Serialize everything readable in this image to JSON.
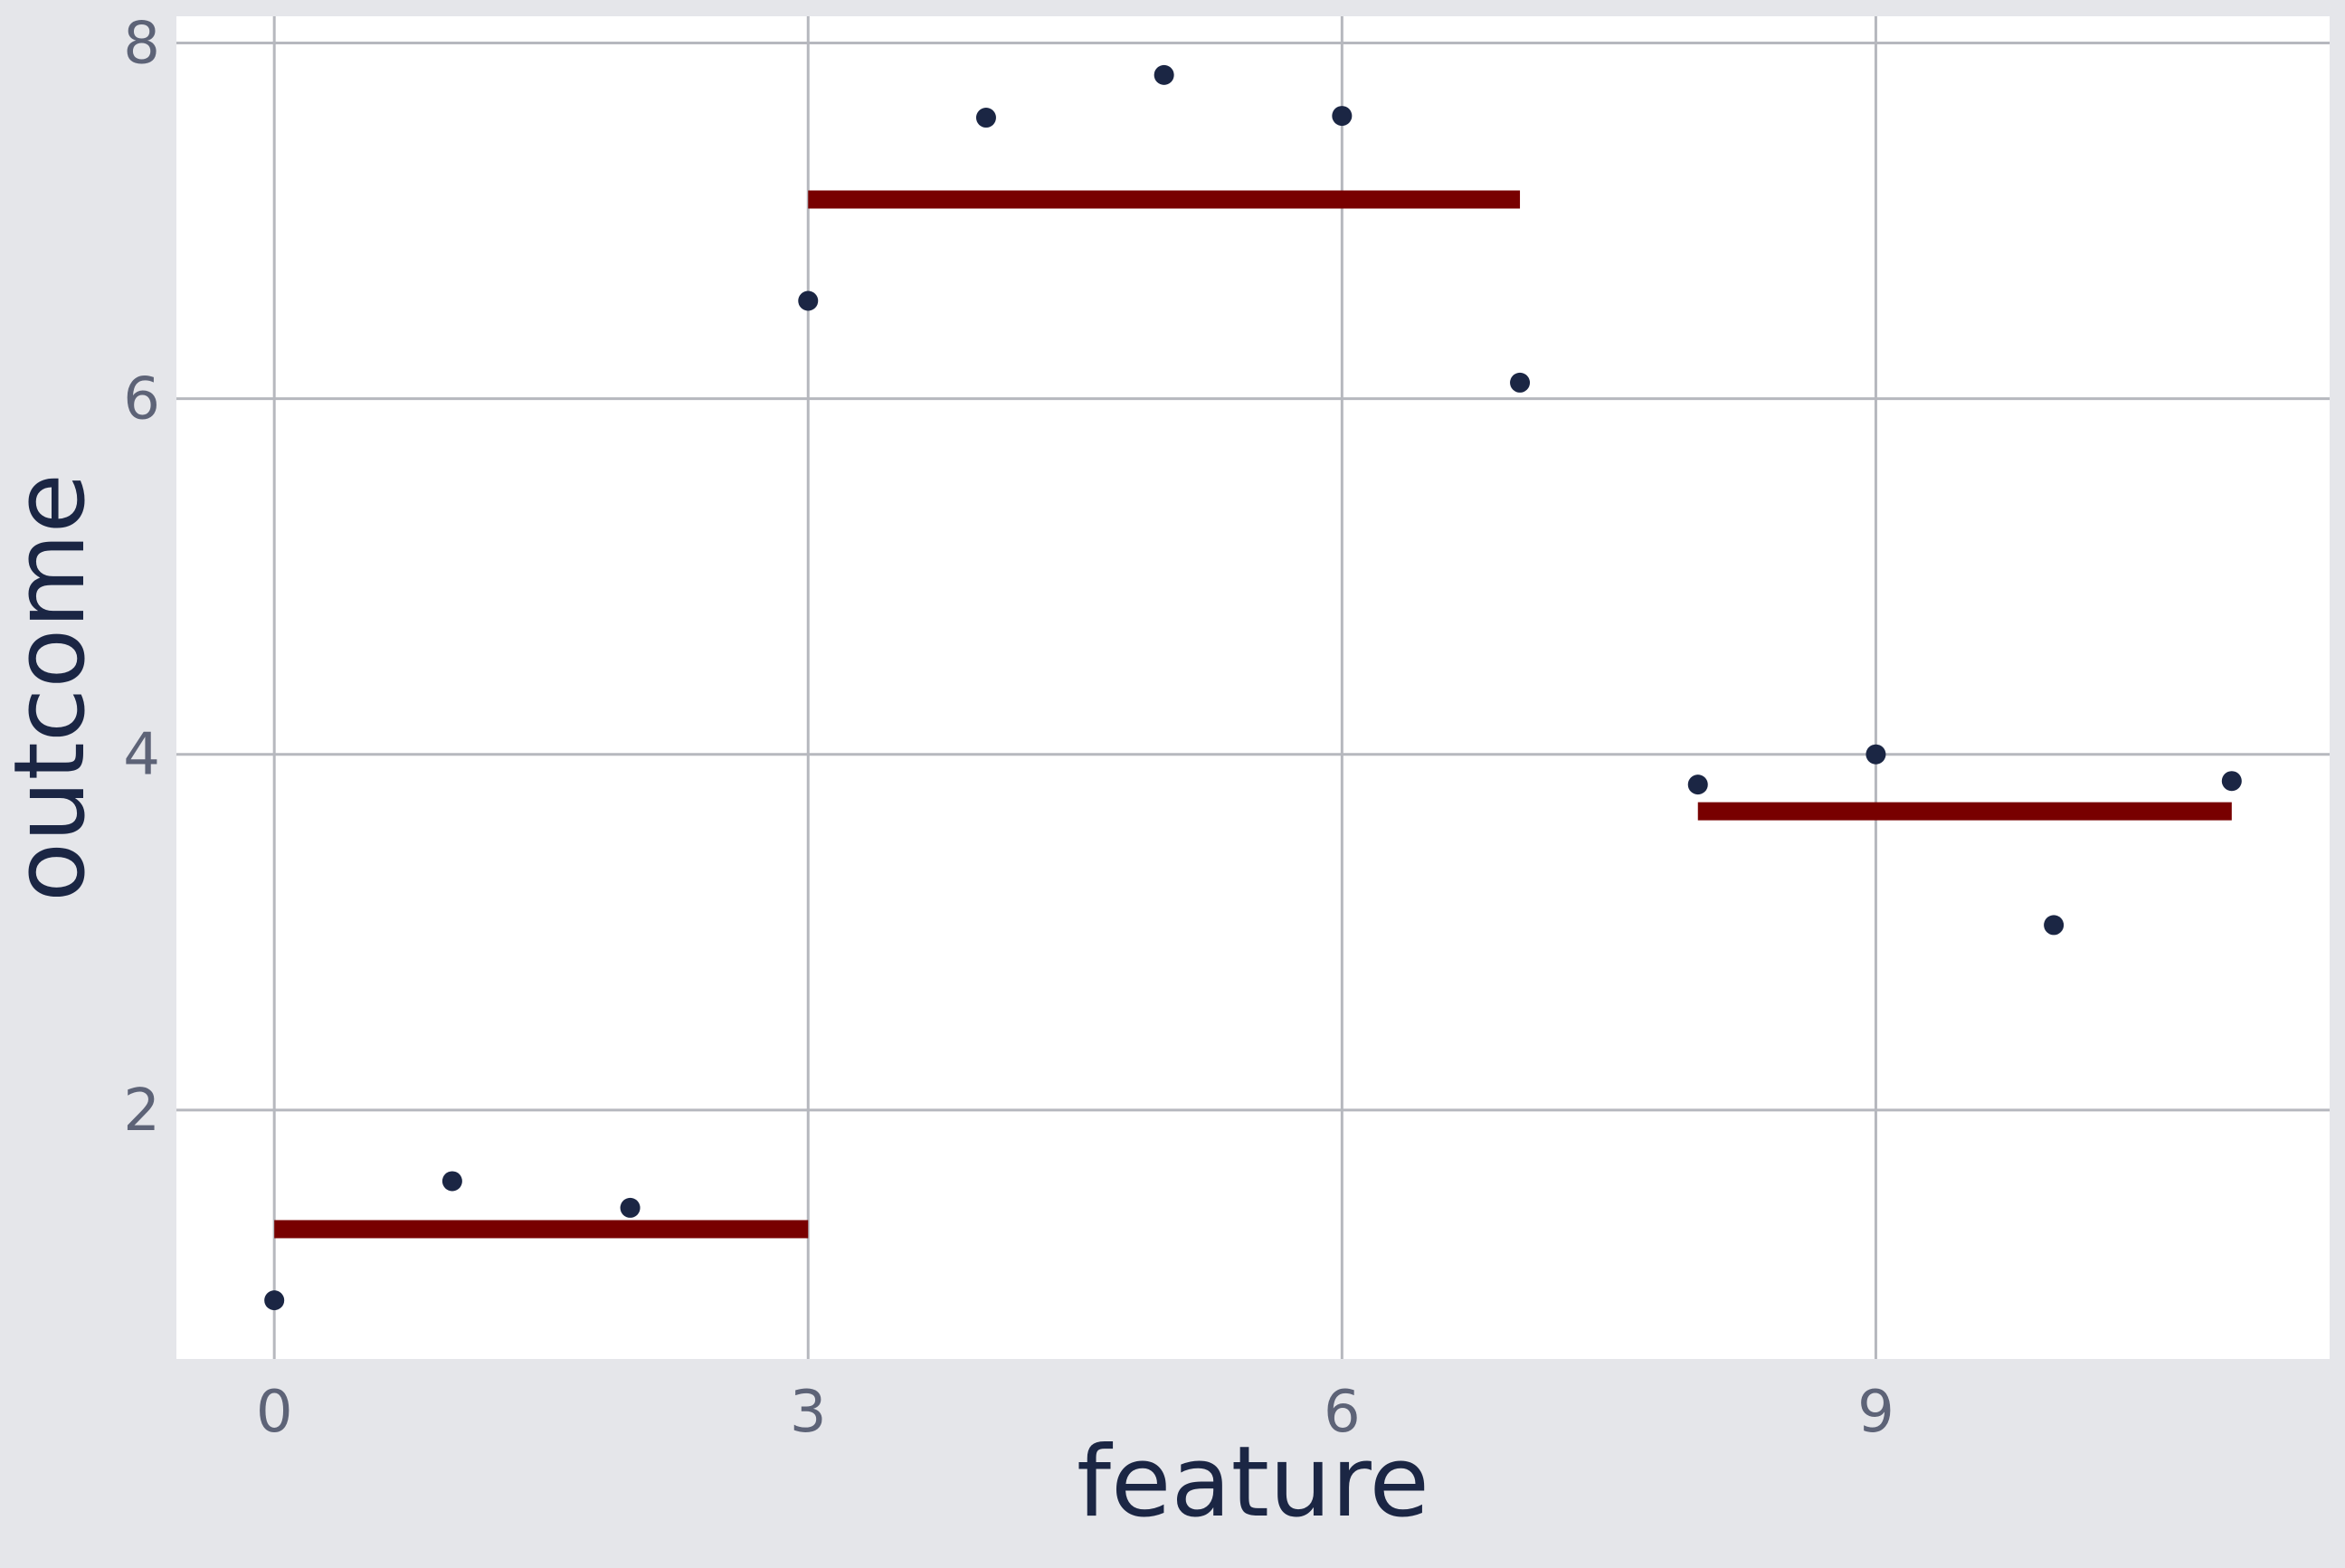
{
  "colors": {
    "background": "#e5e6ea",
    "panel": "#ffffff",
    "grid": "#b6b8be",
    "points": "#1b2644",
    "segments": "#780000",
    "tick_text": "#5d6377",
    "title_text": "#1b2644"
  },
  "chart_data": {
    "type": "scatter",
    "title": "",
    "xlabel": "feature",
    "ylabel": "outcome",
    "xlim": [
      -0.55,
      11.55
    ],
    "ylim": [
      0.6,
      8.15
    ],
    "xticks": [
      0,
      3,
      6,
      9
    ],
    "yticks": [
      2,
      4,
      6,
      8
    ],
    "grid": true,
    "legend": "none",
    "series": [
      {
        "type": "scatter",
        "x": [
          0,
          1,
          2,
          3,
          4,
          5,
          6,
          7,
          8,
          9,
          10,
          11
        ],
        "y": [
          0.93,
          1.6,
          1.45,
          6.55,
          7.58,
          7.82,
          7.59,
          6.09,
          3.83,
          4.0,
          3.04,
          3.85
        ]
      },
      {
        "type": "step-segments",
        "segments": [
          {
            "x_start": 0,
            "x_end": 3,
            "y": 1.33
          },
          {
            "x_start": 3,
            "x_end": 7,
            "y": 7.12
          },
          {
            "x_start": 8,
            "x_end": 11,
            "y": 3.68
          }
        ]
      }
    ]
  }
}
